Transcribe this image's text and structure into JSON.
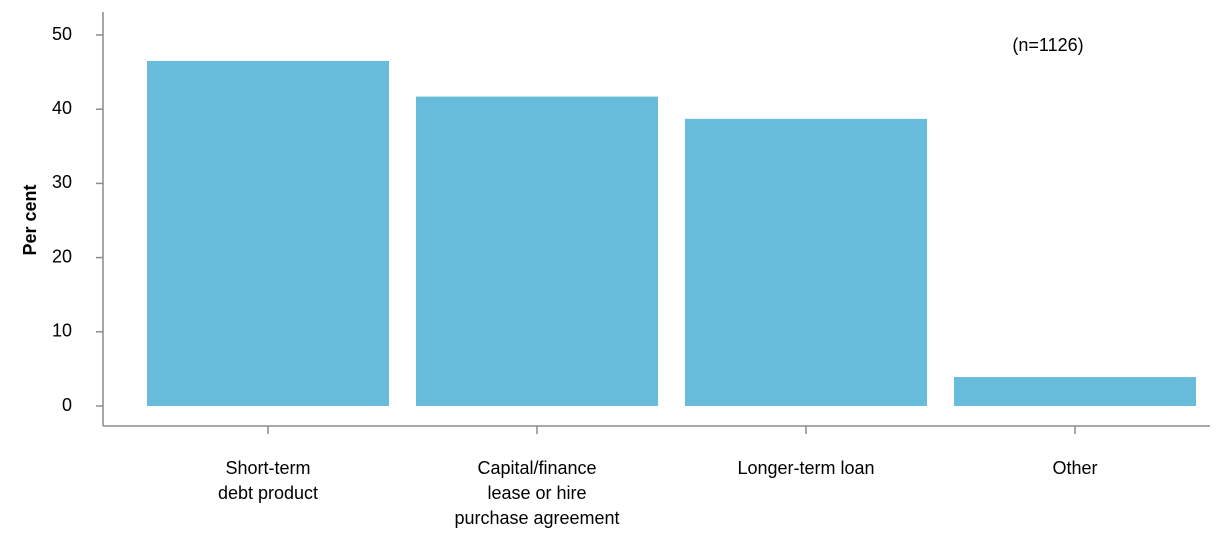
{
  "chart_data": {
    "type": "bar",
    "categories": [
      [
        "Short-term",
        "debt product"
      ],
      [
        "Capital/finance",
        "lease or hire",
        "purchase agreement"
      ],
      [
        "Longer-term loan"
      ],
      [
        "Other"
      ]
    ],
    "values": [
      46.5,
      41.7,
      38.7,
      3.9
    ],
    "annotation": "(n=1126)",
    "xlabel": "",
    "ylabel": "Per cent",
    "ylim": [
      0,
      50
    ],
    "yticks": [
      0,
      10,
      20,
      30,
      40,
      50
    ],
    "bar_color": "#67bcdb",
    "grid": false
  }
}
